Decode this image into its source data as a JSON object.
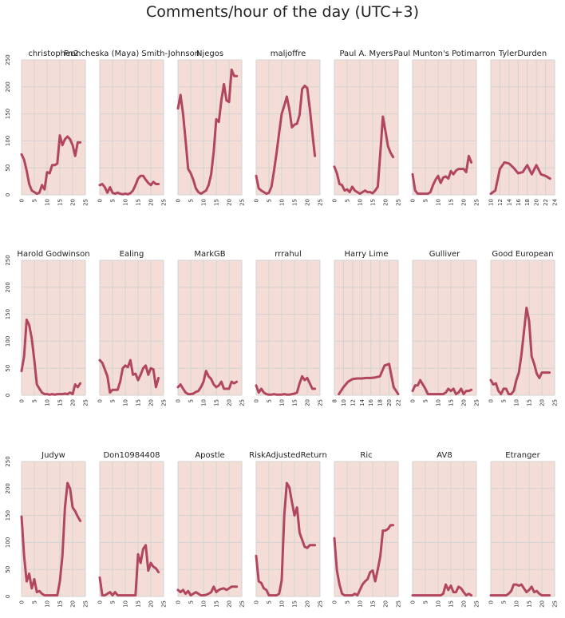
{
  "title": "Comments/hour of the day (UTC+3)",
  "colors": {
    "background": "#f4ddd6",
    "grid": "#d2d2d2",
    "line": "#b0465f"
  },
  "y_ticks": [
    "0",
    "50",
    "100",
    "150",
    "200",
    "250"
  ],
  "chart_data": [
    {
      "type": "line",
      "title": "christopher2",
      "xlim": [
        0,
        25
      ],
      "ylim": [
        0,
        250
      ],
      "x_ticks": [
        0,
        5,
        10,
        15,
        20,
        25
      ],
      "x": [
        0,
        1,
        2,
        3,
        4,
        5,
        6,
        7,
        8,
        9,
        10,
        11,
        12,
        13,
        14,
        15,
        16,
        17,
        18,
        19,
        20,
        21,
        22,
        23
      ],
      "values": [
        75,
        65,
        45,
        20,
        8,
        5,
        2,
        4,
        18,
        10,
        42,
        40,
        55,
        55,
        58,
        110,
        92,
        103,
        108,
        103,
        92,
        72,
        97,
        97
      ]
    },
    {
      "type": "line",
      "title": "Francheska (Maya) Smith-Johnson",
      "xlim": [
        0,
        25
      ],
      "ylim": [
        0,
        250
      ],
      "x_ticks": [
        0,
        5,
        10,
        15,
        20,
        25
      ],
      "x": [
        0,
        1,
        2,
        3,
        4,
        5,
        6,
        7,
        8,
        9,
        10,
        11,
        12,
        13,
        14,
        15,
        16,
        17,
        18,
        19,
        20,
        21,
        22,
        23
      ],
      "values": [
        18,
        20,
        14,
        4,
        14,
        4,
        2,
        4,
        2,
        1,
        2,
        1,
        3,
        8,
        18,
        30,
        35,
        35,
        28,
        22,
        18,
        24,
        20,
        20
      ]
    },
    {
      "type": "line",
      "title": "Njegos",
      "xlim": [
        0,
        25
      ],
      "ylim": [
        0,
        250
      ],
      "x_ticks": [
        0,
        5,
        10,
        15,
        20,
        25
      ],
      "x": [
        0,
        1,
        2,
        3,
        4,
        5,
        6,
        7,
        8,
        9,
        10,
        11,
        12,
        13,
        14,
        15,
        16,
        17,
        18,
        19,
        20,
        21,
        22,
        23
      ],
      "values": [
        160,
        185,
        150,
        100,
        48,
        40,
        28,
        12,
        5,
        2,
        5,
        8,
        18,
        38,
        80,
        140,
        135,
        175,
        205,
        175,
        172,
        232,
        220,
        220
      ]
    },
    {
      "type": "line",
      "title": "maljoffre",
      "xlim": [
        0,
        25
      ],
      "ylim": [
        0,
        250
      ],
      "x_ticks": [
        0,
        5,
        10,
        15,
        20,
        25
      ],
      "x": [
        0,
        1,
        2,
        3,
        4,
        5,
        6,
        7,
        8,
        9,
        10,
        11,
        12,
        13,
        14,
        15,
        16,
        17,
        18,
        19,
        20,
        21,
        22,
        23
      ],
      "values": [
        35,
        12,
        8,
        5,
        2,
        4,
        15,
        45,
        78,
        115,
        150,
        165,
        182,
        158,
        125,
        130,
        132,
        148,
        196,
        202,
        198,
        160,
        115,
        72
      ]
    },
    {
      "type": "line",
      "title": "Paul A. Myers",
      "xlim": [
        0,
        25
      ],
      "ylim": [
        0,
        250
      ],
      "x_ticks": [
        0,
        5,
        10,
        15,
        20,
        25
      ],
      "x": [
        0,
        1,
        2,
        3,
        4,
        5,
        6,
        7,
        8,
        9,
        10,
        11,
        12,
        13,
        14,
        15,
        16,
        17,
        18,
        19,
        20,
        21,
        22,
        23
      ],
      "values": [
        52,
        40,
        20,
        18,
        8,
        10,
        5,
        15,
        8,
        5,
        2,
        5,
        8,
        5,
        5,
        3,
        8,
        15,
        78,
        145,
        118,
        90,
        78,
        70
      ]
    },
    {
      "type": "line",
      "title": "Paul Munton's Potimarron",
      "xlim": [
        0,
        25
      ],
      "ylim": [
        0,
        250
      ],
      "x_ticks": [
        0,
        5,
        10,
        15,
        20,
        25
      ],
      "x": [
        0,
        1,
        2,
        3,
        4,
        5,
        6,
        7,
        8,
        9,
        10,
        11,
        12,
        13,
        14,
        15,
        16,
        17,
        18,
        19,
        20,
        21,
        22,
        23
      ],
      "values": [
        38,
        8,
        2,
        2,
        2,
        2,
        2,
        5,
        18,
        28,
        35,
        22,
        32,
        34,
        30,
        44,
        38,
        45,
        48,
        48,
        48,
        42,
        72,
        60
      ]
    },
    {
      "type": "line",
      "title": "TylerDurden",
      "xlim": [
        10,
        24
      ],
      "ylim": [
        0,
        250
      ],
      "x_ticks": [
        10,
        12,
        14,
        16,
        18,
        20,
        22,
        24
      ],
      "x": [
        10,
        11,
        12,
        13,
        14,
        15,
        16,
        17,
        18,
        19,
        20,
        21,
        22,
        23
      ],
      "values": [
        2,
        8,
        48,
        60,
        58,
        50,
        40,
        42,
        55,
        38,
        55,
        38,
        35,
        30
      ]
    },
    {
      "type": "line",
      "title": "Harold Godwinson",
      "xlim": [
        0,
        25
      ],
      "ylim": [
        0,
        250
      ],
      "x_ticks": [
        0,
        5,
        10,
        15,
        20,
        25
      ],
      "x": [
        0,
        1,
        2,
        3,
        4,
        5,
        6,
        7,
        8,
        9,
        10,
        11,
        12,
        13,
        14,
        15,
        16,
        17,
        18,
        19,
        20,
        21,
        22,
        23
      ],
      "values": [
        45,
        72,
        140,
        130,
        105,
        65,
        20,
        12,
        5,
        2,
        2,
        1,
        2,
        1,
        2,
        2,
        2,
        3,
        2,
        5,
        2,
        20,
        15,
        22
      ]
    },
    {
      "type": "line",
      "title": "Ealing",
      "xlim": [
        0,
        25
      ],
      "ylim": [
        0,
        250
      ],
      "x_ticks": [
        0,
        5,
        10,
        15,
        20,
        25
      ],
      "x": [
        0,
        1,
        2,
        3,
        4,
        5,
        6,
        7,
        8,
        9,
        10,
        11,
        12,
        13,
        14,
        15,
        16,
        17,
        18,
        19,
        20,
        21,
        22,
        23
      ],
      "values": [
        65,
        60,
        48,
        35,
        5,
        10,
        10,
        10,
        25,
        50,
        55,
        52,
        65,
        38,
        40,
        28,
        38,
        50,
        55,
        38,
        50,
        48,
        15,
        32
      ]
    },
    {
      "type": "line",
      "title": "MarkGB",
      "xlim": [
        0,
        25
      ],
      "ylim": [
        0,
        250
      ],
      "x_ticks": [
        0,
        5,
        10,
        15,
        20,
        25
      ],
      "x": [
        0,
        1,
        2,
        3,
        4,
        5,
        6,
        7,
        8,
        9,
        10,
        11,
        12,
        13,
        14,
        15,
        16,
        17,
        18,
        19,
        20,
        21,
        22,
        23
      ],
      "values": [
        15,
        20,
        12,
        5,
        2,
        2,
        3,
        6,
        8,
        15,
        25,
        45,
        35,
        30,
        20,
        15,
        18,
        25,
        12,
        12,
        12,
        25,
        22,
        25
      ]
    },
    {
      "type": "line",
      "title": "rrrahul",
      "xlim": [
        0,
        25
      ],
      "ylim": [
        0,
        250
      ],
      "x_ticks": [
        0,
        5,
        10,
        15,
        20,
        25
      ],
      "x": [
        0,
        1,
        2,
        3,
        4,
        5,
        6,
        7,
        8,
        9,
        10,
        11,
        12,
        13,
        14,
        15,
        16,
        17,
        18,
        19,
        20,
        21,
        22,
        23
      ],
      "values": [
        18,
        5,
        12,
        5,
        2,
        1,
        1,
        2,
        1,
        1,
        1,
        2,
        1,
        1,
        2,
        3,
        5,
        22,
        35,
        28,
        32,
        22,
        12,
        12
      ]
    },
    {
      "type": "line",
      "title": "Harry Lime",
      "xlim": [
        8,
        22
      ],
      "ylim": [
        0,
        250
      ],
      "x_ticks": [
        8,
        10,
        12,
        14,
        16,
        18,
        20,
        22
      ],
      "x": [
        9,
        10,
        11,
        12,
        13,
        14,
        15,
        16,
        17,
        18,
        19,
        20,
        21,
        22
      ],
      "values": [
        2,
        15,
        25,
        30,
        31,
        31,
        32,
        32,
        33,
        35,
        55,
        58,
        15,
        2
      ]
    },
    {
      "type": "line",
      "title": "Gulliver",
      "xlim": [
        0,
        25
      ],
      "ylim": [
        0,
        250
      ],
      "x_ticks": [
        0,
        5,
        10,
        15,
        20,
        25
      ],
      "x": [
        0,
        1,
        2,
        3,
        4,
        5,
        6,
        7,
        8,
        9,
        10,
        11,
        12,
        13,
        14,
        15,
        16,
        17,
        18,
        19,
        20,
        21,
        22,
        23
      ],
      "values": [
        8,
        18,
        18,
        28,
        20,
        12,
        2,
        2,
        2,
        2,
        2,
        2,
        2,
        5,
        12,
        8,
        12,
        2,
        5,
        12,
        2,
        8,
        8,
        10
      ]
    },
    {
      "type": "line",
      "title": "Good European",
      "xlim": [
        0,
        25
      ],
      "ylim": [
        0,
        250
      ],
      "x_ticks": [
        0,
        5,
        10,
        15,
        20,
        25
      ],
      "x": [
        0,
        1,
        2,
        3,
        4,
        5,
        6,
        7,
        8,
        9,
        10,
        11,
        12,
        13,
        14,
        15,
        16,
        17,
        18,
        19,
        20,
        21,
        22,
        23
      ],
      "values": [
        28,
        20,
        22,
        8,
        2,
        12,
        12,
        2,
        2,
        8,
        28,
        42,
        75,
        118,
        162,
        138,
        72,
        58,
        40,
        32,
        42,
        42,
        42,
        42
      ]
    },
    {
      "type": "line",
      "title": "Judyw",
      "xlim": [
        0,
        25
      ],
      "ylim": [
        0,
        250
      ],
      "x_ticks": [
        0,
        5,
        10,
        15,
        20,
        25
      ],
      "x": [
        0,
        1,
        2,
        3,
        4,
        5,
        6,
        7,
        8,
        9,
        10,
        11,
        12,
        13,
        14,
        15,
        16,
        17,
        18,
        19,
        20,
        21,
        22,
        23
      ],
      "values": [
        148,
        75,
        28,
        42,
        15,
        32,
        8,
        10,
        5,
        2,
        2,
        2,
        2,
        2,
        2,
        28,
        75,
        165,
        210,
        200,
        165,
        158,
        148,
        140
      ]
    },
    {
      "type": "line",
      "title": "Don10984408",
      "xlim": [
        0,
        25
      ],
      "ylim": [
        0,
        250
      ],
      "x_ticks": [
        0,
        5,
        10,
        15,
        20,
        25
      ],
      "x": [
        0,
        1,
        2,
        3,
        4,
        5,
        6,
        7,
        8,
        9,
        10,
        11,
        12,
        13,
        14,
        15,
        16,
        17,
        18,
        19,
        20,
        21,
        22,
        23
      ],
      "values": [
        35,
        2,
        2,
        5,
        8,
        2,
        8,
        2,
        2,
        2,
        2,
        2,
        2,
        2,
        2,
        78,
        62,
        88,
        95,
        48,
        62,
        55,
        52,
        45
      ]
    },
    {
      "type": "line",
      "title": "Apostle",
      "xlim": [
        0,
        25
      ],
      "ylim": [
        0,
        250
      ],
      "x_ticks": [
        0,
        5,
        10,
        15,
        20,
        25
      ],
      "x": [
        0,
        1,
        2,
        3,
        4,
        5,
        6,
        7,
        8,
        9,
        10,
        11,
        12,
        13,
        14,
        15,
        16,
        17,
        18,
        19,
        20,
        21,
        22,
        23
      ],
      "values": [
        12,
        8,
        12,
        5,
        10,
        2,
        5,
        8,
        5,
        2,
        2,
        3,
        5,
        8,
        18,
        8,
        12,
        14,
        15,
        12,
        15,
        18,
        18,
        18
      ]
    },
    {
      "type": "line",
      "title": "RiskAdjustedReturn",
      "xlim": [
        0,
        25
      ],
      "ylim": [
        0,
        250
      ],
      "x_ticks": [
        0,
        5,
        10,
        15,
        20,
        25
      ],
      "x": [
        0,
        1,
        2,
        3,
        4,
        5,
        6,
        7,
        8,
        9,
        10,
        11,
        12,
        13,
        14,
        15,
        16,
        17,
        18,
        19,
        20,
        21,
        22,
        23
      ],
      "values": [
        75,
        28,
        25,
        15,
        12,
        2,
        2,
        2,
        2,
        5,
        30,
        150,
        210,
        202,
        175,
        150,
        165,
        118,
        105,
        92,
        90,
        95,
        95,
        95
      ]
    },
    {
      "type": "line",
      "title": "Ric",
      "xlim": [
        0,
        25
      ],
      "ylim": [
        0,
        250
      ],
      "x_ticks": [
        0,
        5,
        10,
        15,
        20,
        25
      ],
      "x": [
        0,
        1,
        2,
        3,
        4,
        5,
        6,
        7,
        8,
        9,
        10,
        11,
        12,
        13,
        14,
        15,
        16,
        17,
        18,
        19,
        20,
        21,
        22,
        23
      ],
      "values": [
        108,
        48,
        22,
        5,
        2,
        2,
        2,
        2,
        5,
        2,
        12,
        22,
        28,
        32,
        45,
        48,
        28,
        50,
        75,
        122,
        122,
        125,
        132,
        132
      ]
    },
    {
      "type": "line",
      "title": "AV8",
      "xlim": [
        0,
        25
      ],
      "ylim": [
        0,
        250
      ],
      "x_ticks": [
        0,
        5,
        10,
        15,
        20,
        25
      ],
      "x": [
        0,
        1,
        2,
        3,
        4,
        5,
        6,
        7,
        8,
        9,
        10,
        11,
        12,
        13,
        14,
        15,
        16,
        17,
        18,
        19,
        20,
        21,
        22,
        23
      ],
      "values": [
        2,
        2,
        2,
        2,
        2,
        2,
        2,
        2,
        2,
        2,
        2,
        2,
        5,
        22,
        12,
        20,
        8,
        8,
        18,
        15,
        8,
        2,
        5,
        2
      ]
    },
    {
      "type": "line",
      "title": "Etranger",
      "xlim": [
        0,
        25
      ],
      "ylim": [
        0,
        250
      ],
      "x_ticks": [
        0,
        5,
        10,
        15,
        20,
        25
      ],
      "x": [
        0,
        1,
        2,
        3,
        4,
        5,
        6,
        7,
        8,
        9,
        10,
        11,
        12,
        13,
        14,
        15,
        16,
        17,
        18,
        19,
        20,
        21,
        22,
        23
      ],
      "values": [
        2,
        2,
        2,
        2,
        2,
        2,
        2,
        5,
        10,
        22,
        22,
        20,
        22,
        15,
        8,
        12,
        18,
        8,
        10,
        5,
        2,
        2,
        2,
        2
      ]
    }
  ]
}
